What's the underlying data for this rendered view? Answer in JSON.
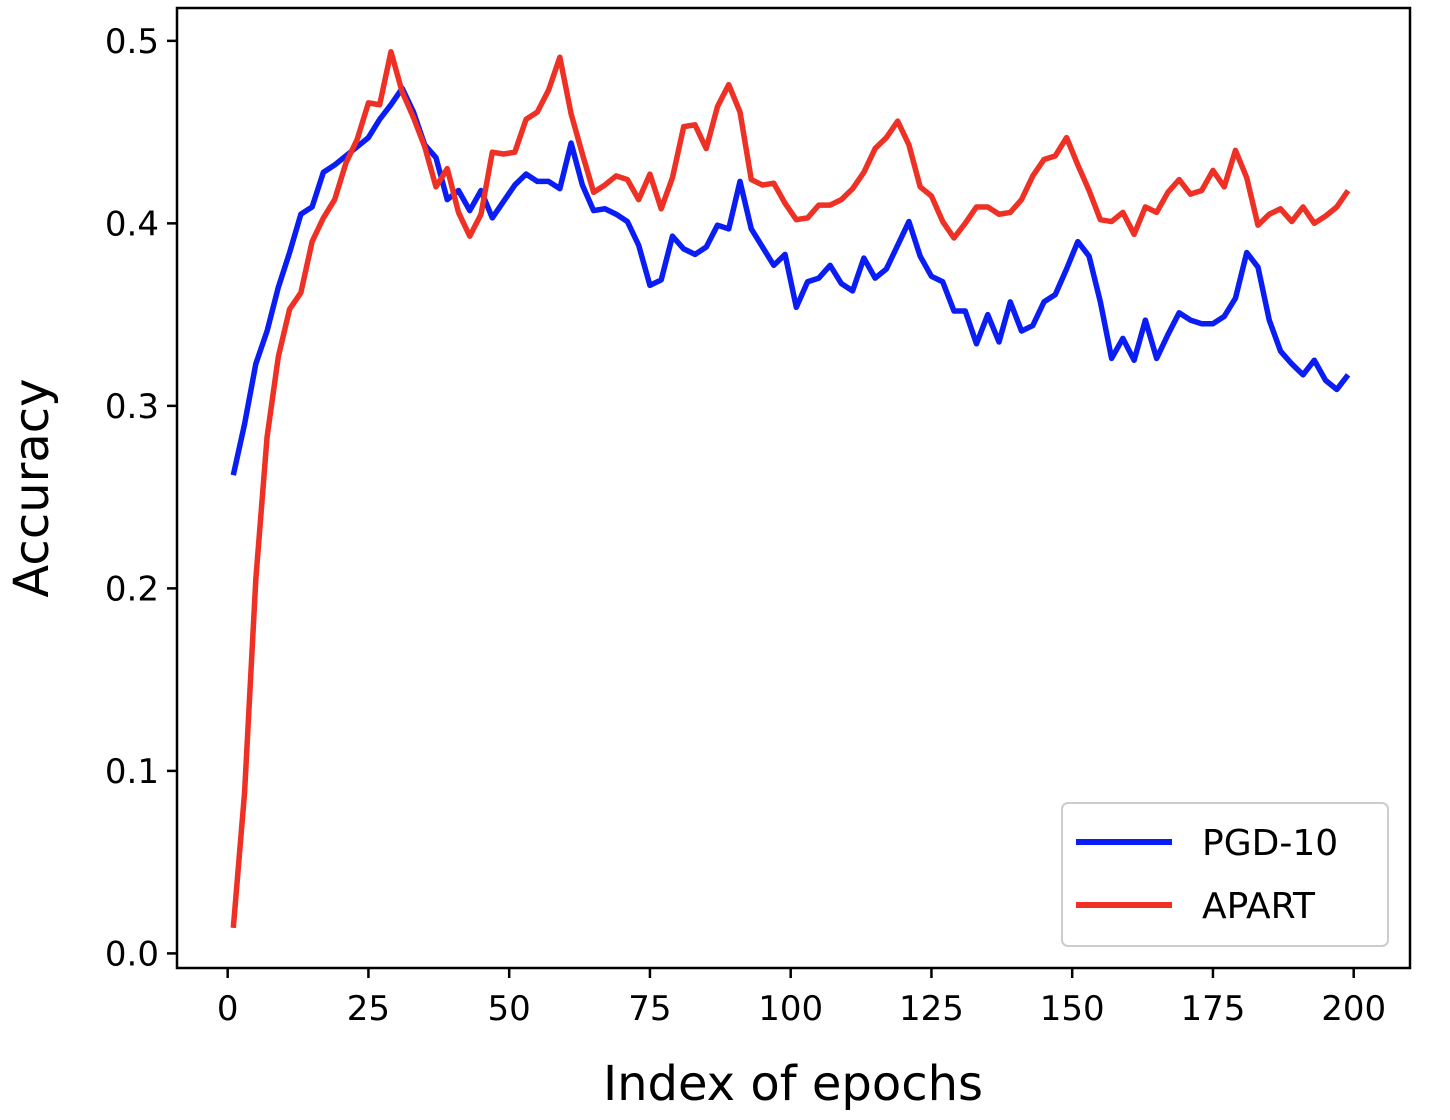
{
  "chart_data": {
    "type": "line",
    "title": "",
    "xlabel": "Index of epochs",
    "ylabel": "Accuracy",
    "xlim": [
      -9,
      210
    ],
    "ylim": [
      -0.008,
      0.518
    ],
    "xticks": [
      0,
      25,
      50,
      75,
      100,
      125,
      150,
      175,
      200
    ],
    "xtick_labels": [
      "0",
      "25",
      "50",
      "75",
      "100",
      "125",
      "150",
      "175",
      "200"
    ],
    "yticks": [
      0.0,
      0.1,
      0.2,
      0.3,
      0.4,
      0.5
    ],
    "ytick_labels": [
      "0.0",
      "0.1",
      "0.2",
      "0.3",
      "0.4",
      "0.5"
    ],
    "grid": false,
    "legend": {
      "placement": "lower-right"
    },
    "x": [
      1,
      3,
      5,
      7,
      9,
      11,
      13,
      15,
      17,
      19,
      21,
      23,
      25,
      27,
      29,
      31,
      33,
      35,
      37,
      39,
      41,
      43,
      45,
      47,
      49,
      51,
      53,
      55,
      57,
      59,
      61,
      63,
      65,
      67,
      69,
      71,
      73,
      75,
      77,
      79,
      81,
      83,
      85,
      87,
      89,
      91,
      93,
      95,
      97,
      99,
      101,
      103,
      105,
      107,
      109,
      111,
      113,
      115,
      117,
      119,
      121,
      123,
      125,
      127,
      129,
      131,
      133,
      135,
      137,
      139,
      141,
      143,
      145,
      147,
      149,
      151,
      153,
      155,
      157,
      159,
      161,
      163,
      165,
      167,
      169,
      171,
      173,
      175,
      177,
      179,
      181,
      183,
      185,
      187,
      189,
      191,
      193,
      195,
      197,
      199
    ],
    "series": [
      {
        "name": "PGD-10",
        "color": "#0a1df5",
        "values": [
          0.262,
          0.29,
          0.323,
          0.341,
          0.365,
          0.384,
          0.405,
          0.409,
          0.428,
          0.432,
          0.437,
          0.442,
          0.447,
          0.457,
          0.465,
          0.474,
          0.461,
          0.443,
          0.436,
          0.413,
          0.418,
          0.407,
          0.418,
          0.403,
          0.412,
          0.421,
          0.427,
          0.423,
          0.423,
          0.419,
          0.444,
          0.421,
          0.407,
          0.408,
          0.405,
          0.401,
          0.388,
          0.366,
          0.369,
          0.393,
          0.386,
          0.383,
          0.387,
          0.399,
          0.397,
          0.423,
          0.397,
          0.387,
          0.377,
          0.383,
          0.354,
          0.368,
          0.37,
          0.377,
          0.367,
          0.363,
          0.381,
          0.37,
          0.375,
          0.388,
          0.401,
          0.382,
          0.371,
          0.368,
          0.352,
          0.352,
          0.334,
          0.35,
          0.335,
          0.357,
          0.341,
          0.344,
          0.357,
          0.361,
          0.375,
          0.39,
          0.382,
          0.357,
          0.326,
          0.337,
          0.325,
          0.347,
          0.326,
          0.339,
          0.351,
          0.347,
          0.345,
          0.345,
          0.349,
          0.359,
          0.384,
          0.376,
          0.347,
          0.33,
          0.323,
          0.317,
          0.325,
          0.314,
          0.309,
          0.317
        ]
      },
      {
        "name": "APART",
        "color": "#ee3124",
        "values": [
          0.014,
          0.088,
          0.205,
          0.283,
          0.327,
          0.353,
          0.362,
          0.39,
          0.403,
          0.413,
          0.433,
          0.446,
          0.466,
          0.465,
          0.494,
          0.472,
          0.458,
          0.442,
          0.42,
          0.43,
          0.406,
          0.393,
          0.405,
          0.439,
          0.438,
          0.439,
          0.457,
          0.461,
          0.473,
          0.491,
          0.46,
          0.438,
          0.417,
          0.421,
          0.426,
          0.424,
          0.413,
          0.427,
          0.408,
          0.425,
          0.453,
          0.454,
          0.441,
          0.464,
          0.476,
          0.461,
          0.424,
          0.421,
          0.422,
          0.411,
          0.402,
          0.403,
          0.41,
          0.41,
          0.413,
          0.419,
          0.428,
          0.441,
          0.447,
          0.456,
          0.443,
          0.42,
          0.415,
          0.401,
          0.392,
          0.4,
          0.409,
          0.409,
          0.405,
          0.406,
          0.413,
          0.426,
          0.435,
          0.437,
          0.447,
          0.432,
          0.418,
          0.402,
          0.401,
          0.406,
          0.394,
          0.409,
          0.406,
          0.417,
          0.424,
          0.416,
          0.418,
          0.429,
          0.42,
          0.44,
          0.425,
          0.399,
          0.405,
          0.408,
          0.401,
          0.409,
          0.4,
          0.404,
          0.409,
          0.418
        ]
      }
    ]
  }
}
